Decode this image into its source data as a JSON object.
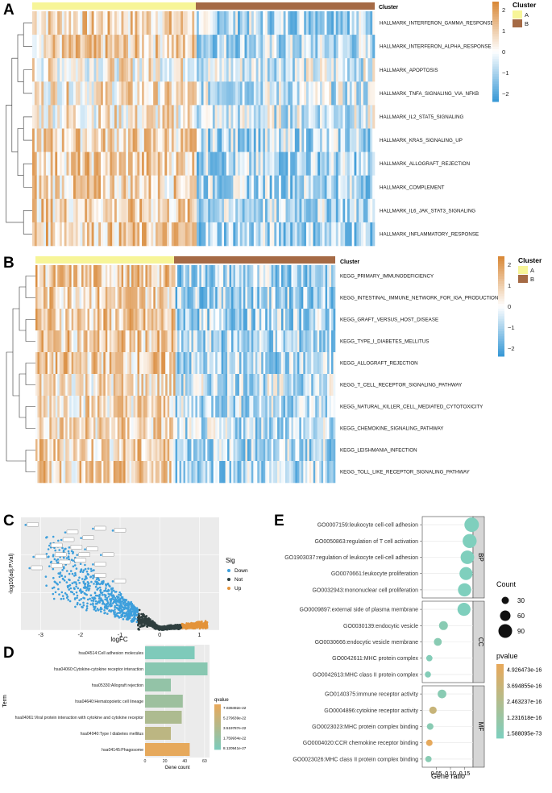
{
  "panels": {
    "A": {
      "letter": "A",
      "cluster_label": "Cluster",
      "rows": [
        "HALLMARK_INTERFERON_GAMMA_RESPONSE",
        "HALLMARK_INTERFERON_ALPHA_RESPONSE",
        "HALLMARK_APOPTOSIS",
        "HALLMARK_TNFA_SIGNALING_VIA_NFKB",
        "HALLMARK_IL2_STAT5_SIGNALING",
        "HALLMARK_KRAS_SIGNALING_UP",
        "HALLMARK_ALLOGRAFT_REJECTION",
        "HALLMARK_COMPLEMENT",
        "HALLMARK_IL6_JAK_STAT3_SIGNALING",
        "HALLMARK_INFLAMMATORY_RESPONSE"
      ],
      "scale_ticks": [
        "2",
        "1",
        "0",
        "−1",
        "−2"
      ],
      "legend_title": "Cluster",
      "legend_items": [
        "A",
        "B"
      ]
    },
    "B": {
      "letter": "B",
      "cluster_label": "Cluster",
      "rows": [
        "KEGG_PRIMARY_IMMUNODEFICIENCY",
        "KEGG_INTESTINAL_IMMUNE_NETWORK_FOR_IGA_PRODUCTION",
        "KEGG_GRAFT_VERSUS_HOST_DISEASE",
        "KEGG_TYPE_I_DIABETES_MELLITUS",
        "KEGG_ALLOGRAFT_REJECTION",
        "KEGG_T_CELL_RECEPTOR_SIGNALING_PATHWAY",
        "KEGG_NATURAL_KILLER_CELL_MEDIATED_CYTOTOXICITY",
        "KEGG_CHEMOKINE_SIGNALING_PATHWAY",
        "KEGG_LEISHMANIA_INFECTION",
        "KEGG_TOLL_LIKE_RECEPTOR_SIGNALING_PATHWAY"
      ],
      "scale_ticks": [
        "2",
        "1",
        "0",
        "−1",
        "−2"
      ],
      "legend_title": "Cluster",
      "legend_items": [
        "A",
        "B"
      ]
    },
    "C": {
      "letter": "C",
      "xlabel": "logFC",
      "ylabel": "-log10(adj.P.Val)",
      "xticks": [
        "-3",
        "-2",
        "-1",
        "0",
        "1"
      ],
      "legend_title": "Sig",
      "legend_items": [
        "Down",
        "Not",
        "Up"
      ]
    },
    "D": {
      "letter": "D",
      "ylabel": "Term",
      "xlabel": "Gene count",
      "xticks": [
        "0",
        "20",
        "40",
        "60"
      ],
      "legend_title": "qvalue",
      "legend_ticks": [
        "7.039492e-22",
        "5.279639e-22",
        "3.519787e-22",
        "1.759934e-22",
        "8.120941e-27"
      ]
    },
    "E": {
      "letter": "E",
      "xlabel": "Gene ratio",
      "xticks": [
        "0.05",
        "0.10",
        "0.15"
      ],
      "facets": [
        "BP",
        "CC",
        "MF"
      ],
      "count_title": "Count",
      "count_items": [
        "30",
        "60",
        "90"
      ],
      "pvalue_title": "pvalue",
      "pvalue_ticks": [
        "4.926473e-16",
        "3.694855e-16",
        "2.463237e-16",
        "1.231618e-16",
        "1.588095e-73"
      ]
    }
  },
  "colors": {
    "cluster_a": "#f7f598",
    "cluster_b": "#a56a45",
    "high": "#d98a3a",
    "mid": "#ffffff",
    "low": "#3b9ad6",
    "down": "#3d9fdc",
    "not": "#2f3f3f",
    "up": "#e3933a",
    "bar_low_q": "#7ecaba",
    "bar_high_q": "#e6a95c"
  },
  "chart_data": [
    {
      "type": "bar",
      "title": "",
      "xlabel": "Gene count",
      "ylabel": "Term",
      "categories": [
        "hsa04514:Cell adhesion molecules",
        "hsa04060:Cytokine-cytokine receptor interaction",
        "hsa05330:Allograft rejection",
        "hsa04640:Hematopoietic cell lineage",
        "hsa04061:Viral protein interaction with cytokine and cytokine receptor",
        "hsa04940:Type I diabetes mellitus",
        "hsa04145:Phagosome"
      ],
      "values": [
        50,
        63,
        26,
        38,
        37,
        26,
        45
      ],
      "qvalue_fraction": [
        0.0,
        0.1,
        0.2,
        0.3,
        0.45,
        0.6,
        1.0
      ],
      "xlim": [
        0,
        65
      ]
    },
    {
      "type": "scatter",
      "title": "",
      "xlabel": "Gene ratio",
      "ylabel": "",
      "categories": [
        "GO0007159:leukocyte cell-cell adhesion",
        "GO0050863:regulation of T cell activation",
        "GO1903037:regulation of leukocyte cell-cell adhesion",
        "GO0070661:leukocyte proliferation",
        "GO0032943:mononuclear cell proliferation",
        "GO0009897:external side of plasma membrane",
        "GO0030139:endocytic vesicle",
        "GO0030666:endocytic vesicle membrane",
        "GO0042611:MHC protein complex",
        "GO0042613:MHC class II protein complex",
        "GO0140375:immune receptor activity",
        "GO0004896:cytokine receptor activity",
        "GO0023023:MHC protein complex binding",
        "GO0004020:CCR chemokine receptor binding",
        "GO0023026:MHC class II protein complex binding"
      ],
      "facet": [
        "BP",
        "BP",
        "BP",
        "BP",
        "BP",
        "CC",
        "CC",
        "CC",
        "CC",
        "CC",
        "MF",
        "MF",
        "MF",
        "MF",
        "MF"
      ],
      "x": [
        0.175,
        0.168,
        0.16,
        0.155,
        0.15,
        0.148,
        0.075,
        0.055,
        0.025,
        0.02,
        0.07,
        0.038,
        0.028,
        0.025,
        0.022
      ],
      "count": [
        95,
        90,
        85,
        80,
        82,
        80,
        40,
        30,
        15,
        12,
        38,
        25,
        18,
        16,
        14
      ],
      "pvalue_fraction": [
        0.0,
        0.0,
        0.0,
        0.0,
        0.0,
        0.0,
        0.1,
        0.1,
        0.05,
        0.05,
        0.1,
        0.7,
        0.1,
        1.0,
        0.1
      ],
      "xlim": [
        0.0,
        0.18
      ]
    }
  ]
}
